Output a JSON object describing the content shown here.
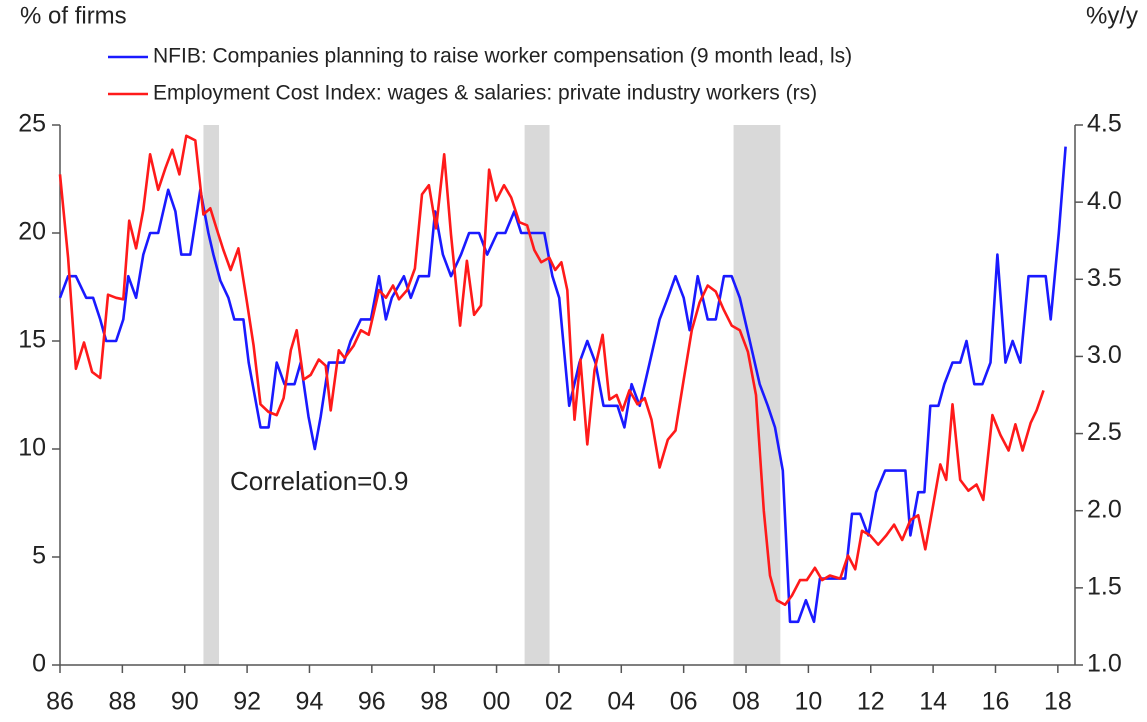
{
  "chart_data": {
    "type": "line",
    "y_label": "% of firms",
    "y2_label": "%y/y",
    "annotation": "Correlation=0.9",
    "xlim": [
      1986,
      2018.55
    ],
    "xticks": [
      {
        "value": 1986,
        "label": "86"
      },
      {
        "value": 1988,
        "label": "88"
      },
      {
        "value": 1990,
        "label": "90"
      },
      {
        "value": 1992,
        "label": "92"
      },
      {
        "value": 1994,
        "label": "94"
      },
      {
        "value": 1996,
        "label": "96"
      },
      {
        "value": 1998,
        "label": "98"
      },
      {
        "value": 2000,
        "label": "00"
      },
      {
        "value": 2002,
        "label": "02"
      },
      {
        "value": 2004,
        "label": "04"
      },
      {
        "value": 2006,
        "label": "06"
      },
      {
        "value": 2008,
        "label": "08"
      },
      {
        "value": 2010,
        "label": "10"
      },
      {
        "value": 2012,
        "label": "12"
      },
      {
        "value": 2014,
        "label": "14"
      },
      {
        "value": 2016,
        "label": "16"
      },
      {
        "value": 2018,
        "label": "18"
      }
    ],
    "ylim": [
      0,
      25
    ],
    "yticks": [
      0,
      5,
      10,
      15,
      20,
      25
    ],
    "y2lim": [
      1,
      4.5
    ],
    "y2ticks": [
      {
        "value": 1,
        "label": "1.0"
      },
      1.5,
      {
        "value": 2,
        "label": "2.0"
      },
      2.5,
      {
        "value": 3,
        "label": "3.0"
      },
      3.5,
      {
        "value": 4,
        "label": "4.0"
      },
      4.5
    ],
    "shaded_regions": [
      {
        "start": 1990.6,
        "end": 1991.1,
        "color": "#d9d9d9"
      },
      {
        "start": 2000.9,
        "end": 2001.7,
        "color": "#d9d9d9"
      },
      {
        "start": 2007.6,
        "end": 2009.1,
        "color": "#d9d9d9"
      }
    ],
    "series": [
      {
        "name": "NFIB: Companies planning to raise worker compensation (9 month lead, ls)",
        "color": "#1a1aff",
        "axis": "y",
        "x": [
          1986.0,
          1986.26,
          1986.51,
          1986.84,
          1987.06,
          1987.29,
          1987.48,
          1987.8,
          1988.03,
          1988.19,
          1988.44,
          1988.67,
          1988.89,
          1989.15,
          1989.47,
          1989.7,
          1989.89,
          1990.18,
          1990.5,
          1990.76,
          1990.92,
          1991.14,
          1991.4,
          1991.59,
          1991.88,
          1992.05,
          1992.43,
          1992.69,
          1992.95,
          1993.2,
          1993.52,
          1993.72,
          1993.97,
          1994.17,
          1994.36,
          1994.62,
          1995.1,
          1995.32,
          1995.65,
          1995.97,
          1996.23,
          1996.45,
          1996.64,
          1997.03,
          1997.25,
          1997.51,
          1997.83,
          1998.03,
          1998.28,
          1998.54,
          1998.86,
          1999.12,
          1999.44,
          1999.7,
          2000.02,
          2000.28,
          2000.57,
          2000.79,
          2001.53,
          2001.79,
          2002.01,
          2002.33,
          2002.66,
          2002.91,
          2003.17,
          2003.43,
          2003.88,
          2004.1,
          2004.33,
          2004.59,
          2004.91,
          2005.23,
          2005.49,
          2005.74,
          2006.0,
          2006.19,
          2006.45,
          2006.77,
          2007.03,
          2007.29,
          2007.54,
          2007.8,
          2008.12,
          2008.44,
          2008.7,
          2008.93,
          2009.18,
          2009.41,
          2009.67,
          2009.92,
          2010.18,
          2010.37,
          2011.18,
          2011.4,
          2011.66,
          2011.92,
          2012.17,
          2012.46,
          2013.11,
          2013.27,
          2013.52,
          2013.72,
          2013.91,
          2014.17,
          2014.36,
          2014.62,
          2014.87,
          2015.07,
          2015.32,
          2015.58,
          2015.84,
          2016.06,
          2016.32,
          2016.55,
          2016.8,
          2017.06,
          2017.61,
          2017.77,
          2018.03,
          2018.25
        ],
        "values": [
          17,
          18,
          18,
          17,
          17,
          16,
          15,
          15,
          16,
          18,
          17,
          19,
          20,
          20,
          22,
          21,
          19,
          19,
          22,
          20,
          19,
          17.8,
          17,
          16,
          16,
          14,
          11,
          11,
          14,
          13,
          13,
          14,
          11.5,
          10,
          11.5,
          14,
          14,
          15,
          16,
          16,
          18,
          16,
          17,
          18,
          17,
          18,
          18,
          21,
          19,
          18,
          19,
          20,
          20,
          19,
          20,
          20,
          21,
          20,
          20,
          18,
          17,
          12,
          14,
          15,
          14,
          12,
          12,
          11,
          13,
          12,
          14,
          16,
          17,
          18,
          17,
          15.5,
          18,
          16,
          16,
          18,
          18,
          17,
          15,
          13,
          12,
          11,
          9,
          2,
          2,
          3,
          2,
          4,
          4,
          7,
          7,
          6,
          8,
          9,
          9,
          6,
          8,
          8,
          12,
          12,
          13,
          14,
          14,
          15,
          13,
          13,
          14,
          19,
          14,
          15,
          14,
          18,
          18,
          16,
          20,
          24
        ]
      },
      {
        "name": "Employment Cost Index: wages & salaries: private industry workers (rs)",
        "color": "#ff1a1a",
        "axis": "y2",
        "x": [
          1986.0,
          1986.26,
          1986.51,
          1986.77,
          1987.03,
          1987.29,
          1987.54,
          1987.8,
          1988.03,
          1988.22,
          1988.44,
          1988.67,
          1988.89,
          1989.15,
          1989.38,
          1989.6,
          1989.83,
          1990.05,
          1990.34,
          1990.6,
          1990.82,
          1991.02,
          1991.24,
          1991.47,
          1991.72,
          1991.98,
          1992.21,
          1992.43,
          1992.69,
          1992.95,
          1993.17,
          1993.4,
          1993.59,
          1993.81,
          1994.04,
          1994.3,
          1994.52,
          1994.68,
          1994.94,
          1995.13,
          1995.42,
          1995.65,
          1995.9,
          1996.23,
          1996.45,
          1996.68,
          1996.87,
          1997.13,
          1997.38,
          1997.61,
          1997.83,
          1998.06,
          1998.32,
          1998.54,
          1998.83,
          1999.05,
          1999.28,
          1999.5,
          1999.76,
          1999.99,
          2000.24,
          2000.47,
          2000.73,
          2000.98,
          2001.21,
          2001.43,
          2001.69,
          2001.88,
          2002.08,
          2002.27,
          2002.5,
          2002.69,
          2002.91,
          2003.14,
          2003.4,
          2003.62,
          2003.85,
          2004.04,
          2004.26,
          2004.52,
          2004.75,
          2004.97,
          2005.23,
          2005.49,
          2005.74,
          2006.0,
          2006.26,
          2006.51,
          2006.77,
          2007.03,
          2007.29,
          2007.54,
          2007.8,
          2008.06,
          2008.32,
          2008.57,
          2008.77,
          2008.99,
          2009.25,
          2009.47,
          2009.73,
          2009.95,
          2010.21,
          2010.44,
          2010.69,
          2011.02,
          2011.27,
          2011.5,
          2011.72,
          2011.98,
          2012.24,
          2012.5,
          2012.75,
          2013.01,
          2013.27,
          2013.52,
          2013.75,
          2013.97,
          2014.23,
          2014.42,
          2014.62,
          2014.87,
          2015.13,
          2015.39,
          2015.61,
          2015.9,
          2016.16,
          2016.42,
          2016.64,
          2016.87,
          2017.13,
          2017.32,
          2017.54
        ],
        "values": [
          4.18,
          3.64,
          2.92,
          3.09,
          2.9,
          2.86,
          3.4,
          3.38,
          3.37,
          3.88,
          3.7,
          3.95,
          4.31,
          4.08,
          4.22,
          4.34,
          4.18,
          4.43,
          4.4,
          3.92,
          3.96,
          3.83,
          3.69,
          3.56,
          3.7,
          3.37,
          3.07,
          2.69,
          2.64,
          2.62,
          2.73,
          3.04,
          3.17,
          2.85,
          2.88,
          2.98,
          2.94,
          2.65,
          3.04,
          2.99,
          3.07,
          3.17,
          3.14,
          3.43,
          3.38,
          3.46,
          3.37,
          3.43,
          3.57,
          4.05,
          4.11,
          3.83,
          4.31,
          3.79,
          3.2,
          3.62,
          3.27,
          3.33,
          4.21,
          4.01,
          4.11,
          4.03,
          3.87,
          3.85,
          3.69,
          3.61,
          3.64,
          3.56,
          3.61,
          3.43,
          2.59,
          2.98,
          2.43,
          2.91,
          3.14,
          2.72,
          2.75,
          2.65,
          2.78,
          2.69,
          2.73,
          2.59,
          2.28,
          2.46,
          2.52,
          2.85,
          3.17,
          3.35,
          3.46,
          3.42,
          3.3,
          3.2,
          3.17,
          3.03,
          2.75,
          2.0,
          1.58,
          1.42,
          1.39,
          1.45,
          1.55,
          1.55,
          1.63,
          1.55,
          1.58,
          1.56,
          1.71,
          1.62,
          1.87,
          1.84,
          1.78,
          1.84,
          1.91,
          1.81,
          1.94,
          1.97,
          1.75,
          2.0,
          2.3,
          2.2,
          2.69,
          2.2,
          2.13,
          2.17,
          2.07,
          2.62,
          2.49,
          2.39,
          2.56,
          2.39,
          2.57,
          2.65,
          2.78
        ]
      }
    ]
  }
}
